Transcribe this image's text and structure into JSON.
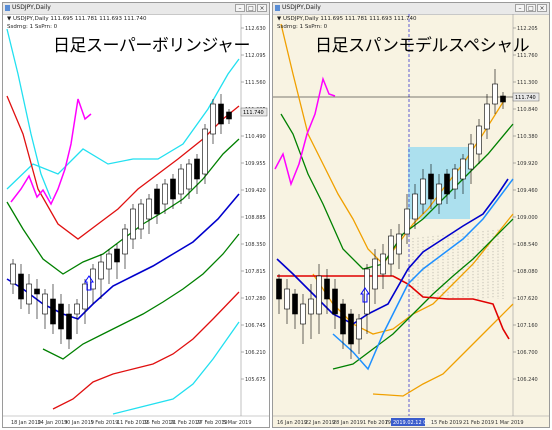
{
  "left_window": {
    "title": "USDJPY,Daily",
    "info_line": "▼ USDJPY,Daily 111.695 111.781 111.693 111.740",
    "info_line2": "Ssdrng: 1 SsPrn: 0",
    "overlay_title": "日足スーパーボリンジャー",
    "current_price": "111.740",
    "price_ticks": [
      "112.630",
      "112.095",
      "111.560",
      "111.025",
      "110.490",
      "109.955",
      "109.420",
      "108.885",
      "108.350",
      "107.815",
      "107.280",
      "106.745",
      "106.210",
      "105.675"
    ],
    "date_ticks": [
      "18 Jan 2019",
      "24 Jan 2019",
      "30 Jan 2019",
      "5 Feb 2019",
      "11 Feb 2019",
      "15 Feb 2019",
      "21 Feb 2019",
      "27 Feb 2019",
      "5 Mar 2019"
    ],
    "colors": {
      "upper3": "#22e0f0",
      "upper2": "#e01010",
      "upper1": "#008000",
      "middle": "#0000cc",
      "lagging": "#ff00ff",
      "arrow": "#0000ff"
    }
  },
  "right_window": {
    "title": "USDJPY,Daily",
    "info_line": "▼ USDJPY,Daily 111.695 111.781 111.693 111.740",
    "info_line2": "Ssdrng: 1 SsPrn: 0",
    "overlay_title": "日足スパンモデルスペシャル",
    "current_price": "111.740",
    "price_ticks": [
      "112.205",
      "111.760",
      "111.300",
      "110.840",
      "110.380",
      "109.920",
      "109.460",
      "109.000",
      "108.540",
      "108.080",
      "107.620",
      "107.160",
      "106.700",
      "106.240"
    ],
    "date_ticks": [
      "16 Jan 2019",
      "22 Jan 2019",
      "28 Jan 2019",
      "1 Feb 2019",
      "7",
      "2019.02.12 00:00",
      "15 Feb 2019",
      "21 Feb 2019",
      "1 Mar 2019"
    ],
    "colors": {
      "bg": "#f8f3e2",
      "orange": "#f0a000",
      "green": "#008000",
      "red": "#e00000",
      "blue": "#0000cc",
      "lightblue": "#1e90ff",
      "highlight": "#9fdcf0",
      "lagging": "#ff00ff"
    }
  }
}
